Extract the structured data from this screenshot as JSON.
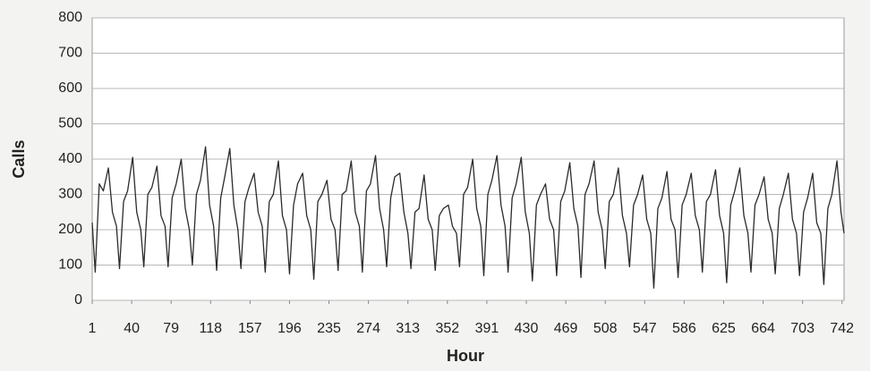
{
  "chart_data": {
    "type": "line",
    "x_label": "Hour",
    "y_label": "Calls",
    "xlim": [
      1,
      744
    ],
    "ylim": [
      0,
      800
    ],
    "xticks": [
      1,
      40,
      79,
      118,
      157,
      196,
      235,
      274,
      313,
      352,
      391,
      430,
      469,
      508,
      547,
      586,
      625,
      664,
      703,
      742
    ],
    "yticks": [
      0,
      100,
      200,
      300,
      400,
      500,
      600,
      700,
      800
    ],
    "grid": true,
    "color": "#2b2b2b",
    "x": [
      1,
      4,
      8,
      12,
      17,
      21,
      25,
      28,
      32,
      36,
      41,
      45,
      49,
      52,
      56,
      60,
      65,
      69,
      73,
      76,
      80,
      84,
      89,
      93,
      97,
      100,
      104,
      108,
      113,
      117,
      121,
      124,
      128,
      132,
      137,
      141,
      145,
      148,
      152,
      156,
      161,
      165,
      169,
      172,
      176,
      180,
      185,
      189,
      193,
      196,
      200,
      204,
      209,
      213,
      217,
      220,
      224,
      228,
      233,
      237,
      241,
      244,
      248,
      252,
      257,
      261,
      265,
      268,
      272,
      276,
      281,
      285,
      289,
      292,
      296,
      300,
      305,
      309,
      313,
      316,
      320,
      324,
      329,
      333,
      337,
      340,
      344,
      348,
      353,
      357,
      361,
      364,
      368,
      372,
      377,
      381,
      385,
      388,
      392,
      396,
      401,
      405,
      409,
      412,
      416,
      420,
      425,
      429,
      433,
      436,
      440,
      444,
      449,
      453,
      457,
      460,
      464,
      468,
      473,
      477,
      481,
      484,
      488,
      492,
      497,
      501,
      505,
      508,
      512,
      516,
      521,
      525,
      529,
      532,
      536,
      540,
      545,
      549,
      553,
      556,
      560,
      564,
      569,
      573,
      577,
      580,
      584,
      588,
      593,
      597,
      601,
      604,
      608,
      612,
      617,
      621,
      625,
      628,
      632,
      636,
      641,
      645,
      649,
      652,
      656,
      660,
      665,
      669,
      673,
      676,
      680,
      684,
      689,
      693,
      697,
      700,
      704,
      708,
      713,
      717,
      721,
      724,
      728,
      732,
      737,
      741,
      744
    ],
    "values": [
      220,
      80,
      330,
      310,
      375,
      250,
      210,
      90,
      280,
      310,
      405,
      250,
      200,
      95,
      300,
      320,
      380,
      240,
      210,
      95,
      290,
      330,
      400,
      260,
      200,
      100,
      300,
      340,
      435,
      270,
      210,
      85,
      290,
      350,
      430,
      270,
      200,
      90,
      280,
      320,
      360,
      250,
      210,
      80,
      280,
      300,
      395,
      240,
      200,
      75,
      270,
      330,
      360,
      240,
      200,
      60,
      280,
      300,
      340,
      230,
      200,
      85,
      300,
      310,
      395,
      250,
      210,
      80,
      310,
      330,
      410,
      260,
      200,
      95,
      290,
      350,
      360,
      250,
      190,
      90,
      250,
      260,
      355,
      230,
      200,
      85,
      240,
      260,
      270,
      210,
      190,
      95,
      300,
      320,
      400,
      260,
      210,
      70,
      300,
      340,
      410,
      270,
      210,
      80,
      290,
      330,
      405,
      250,
      190,
      55,
      270,
      300,
      330,
      230,
      200,
      70,
      280,
      310,
      390,
      260,
      210,
      65,
      300,
      330,
      395,
      250,
      200,
      90,
      280,
      300,
      375,
      240,
      190,
      95,
      270,
      300,
      355,
      230,
      190,
      35,
      260,
      290,
      365,
      230,
      200,
      65,
      270,
      300,
      360,
      240,
      200,
      80,
      280,
      300,
      370,
      240,
      190,
      50,
      270,
      310,
      375,
      240,
      190,
      80,
      270,
      300,
      350,
      230,
      190,
      75,
      260,
      300,
      360,
      230,
      190,
      70,
      250,
      290,
      360,
      220,
      190,
      45,
      260,
      300,
      395,
      250,
      190
    ]
  }
}
